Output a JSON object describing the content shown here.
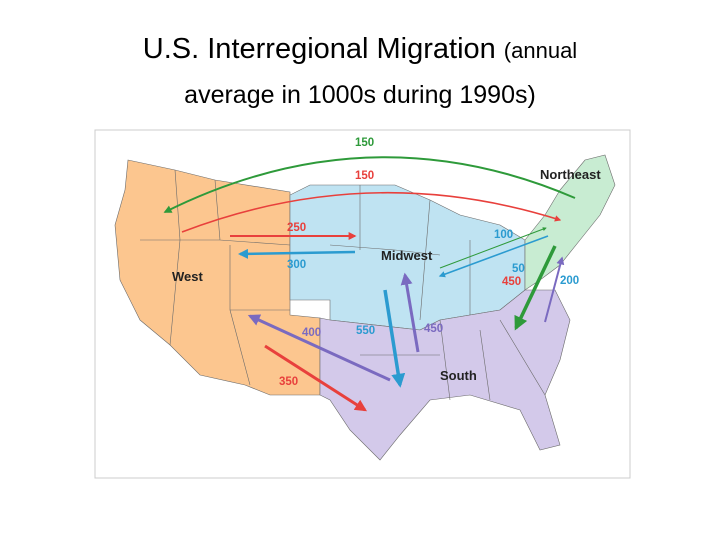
{
  "title": {
    "main": "U.S. Interregional Migration",
    "note": "(annual",
    "continued": "average in 1000s during 1990s)"
  },
  "map": {
    "regions": [
      "West",
      "Midwest",
      "South",
      "Northeast"
    ],
    "flows": [
      150,
      150,
      250,
      300,
      100,
      50,
      450,
      200,
      400,
      550,
      450,
      350
    ]
  }
}
